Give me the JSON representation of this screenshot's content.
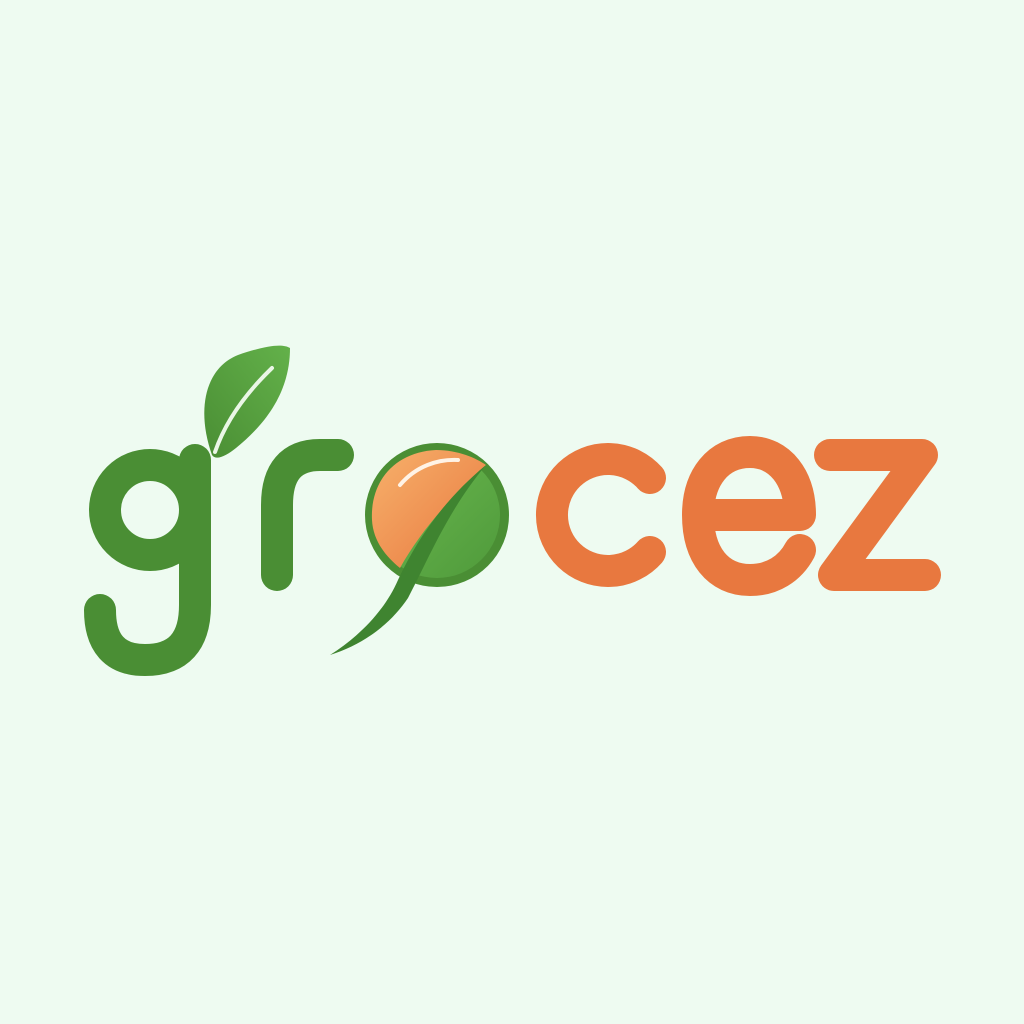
{
  "logo": {
    "wordmark": "GROCEZ",
    "wordmark_parts": [
      "gr",
      "o",
      "cez"
    ],
    "icons": [
      "leaf-icon",
      "fruit-o-icon"
    ]
  },
  "colors": {
    "background": "#EEFBF1",
    "green": "#4A8E34",
    "leaf_green": "#5AA646",
    "light_green": "#6CBA50",
    "orange": "#E8783F",
    "light_orange": "#F2A65F"
  }
}
